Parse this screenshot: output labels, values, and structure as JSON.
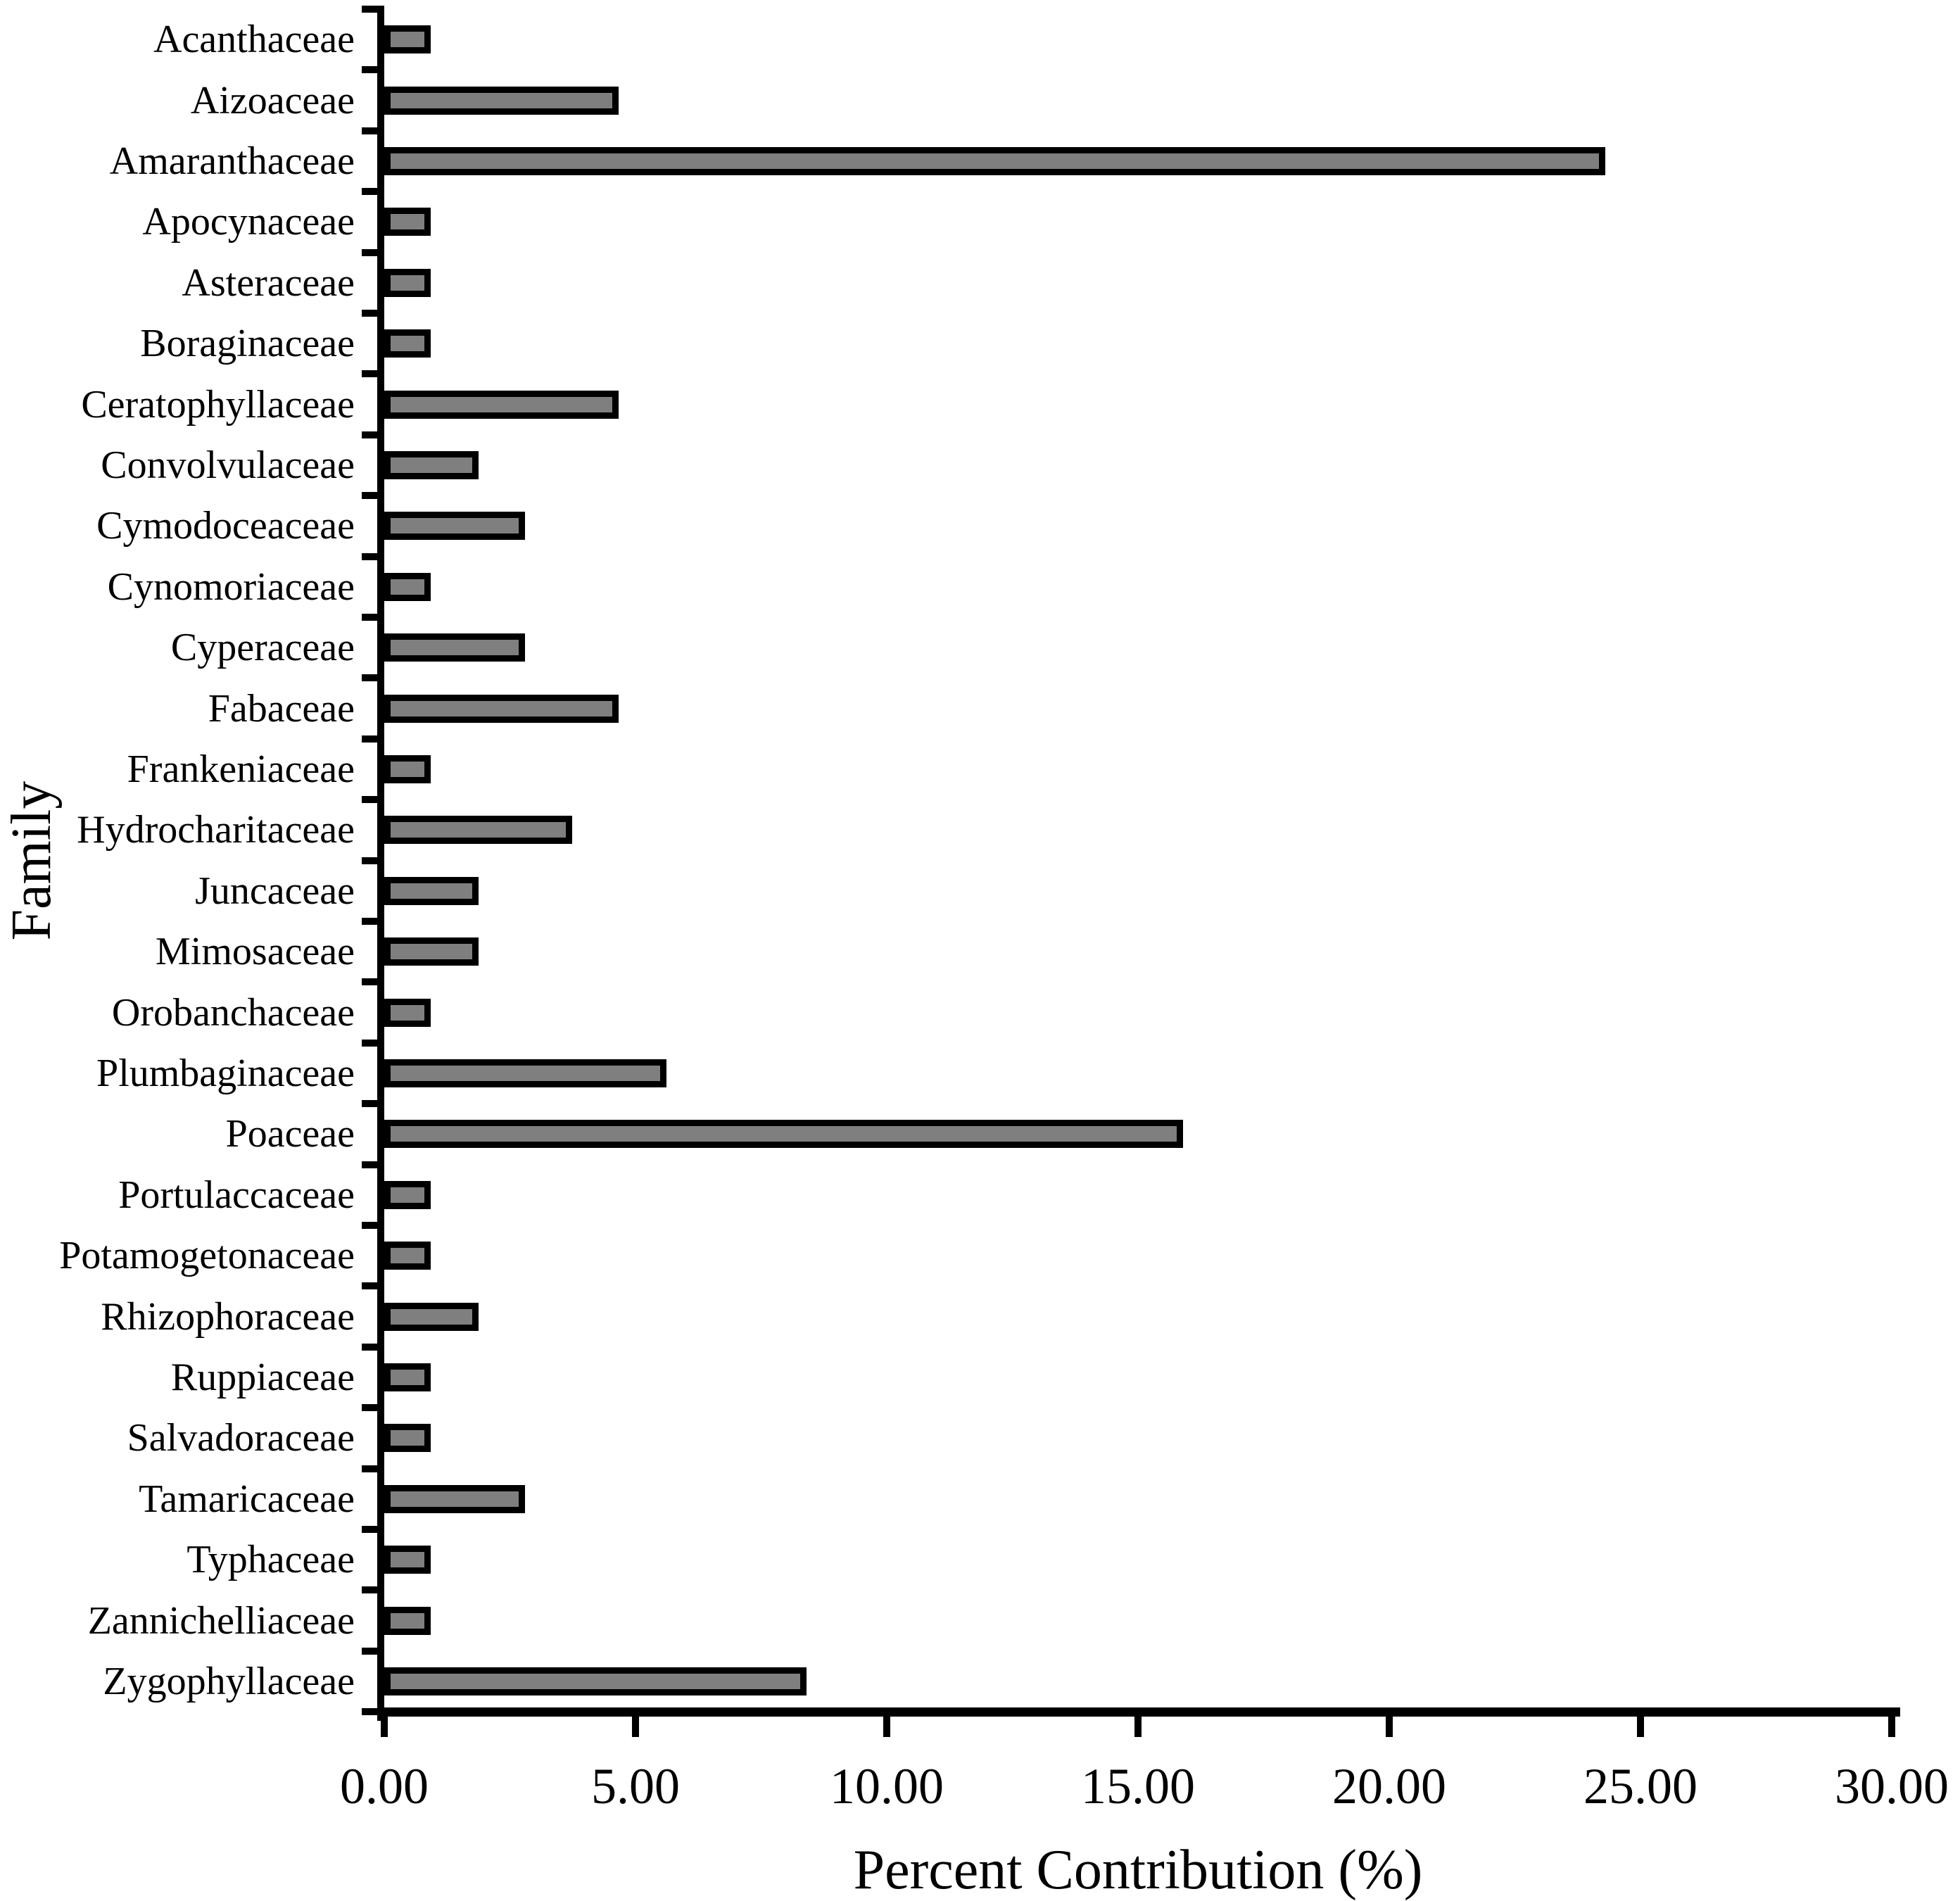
{
  "figure": {
    "background_color": "#ffffff",
    "bar_fill_color": "#7f7f7f",
    "bar_outline_color": "#000000",
    "axis_color": "#000000"
  },
  "chart_data": {
    "type": "bar",
    "orientation": "horizontal",
    "title": "",
    "xlabel": "Percent Contribution (%)",
    "ylabel": "Family",
    "xlim": [
      0,
      30
    ],
    "xticks": [
      0,
      5,
      10,
      15,
      20,
      25,
      30
    ],
    "xtick_labels": [
      "0.00",
      "5.00",
      "10.00",
      "15.00",
      "20.00",
      "25.00",
      "30.00"
    ],
    "grid": false,
    "legend": "none",
    "categories": [
      "Acanthaceae",
      "Aizoaceae",
      "Amaranthaceae",
      "Apocynaceae",
      "Asteraceae",
      "Boraginaceae",
      "Ceratophyllaceae",
      "Convolvulaceae",
      "Cymodoceaceae",
      "Cynomoriaceae",
      "Cyperaceae",
      "Fabaceae",
      "Frankeniaceae",
      "Hydrocharitaceae",
      "Juncaceae",
      "Mimosaceae",
      "Orobanchaceae",
      "Plumbaginaceae",
      "Poaceae",
      "Portulaccaceae",
      "Potamogetonaceae",
      "Rhizophoraceae",
      "Ruppiaceae",
      "Salvadoraceae",
      "Tamaricaceae",
      "Typhaceae",
      "Zannichelliaceae",
      "Zygophyllaceae"
    ],
    "values": [
      0.93,
      4.67,
      24.3,
      0.93,
      0.93,
      0.93,
      4.67,
      1.87,
      2.8,
      0.93,
      2.8,
      4.67,
      0.93,
      3.74,
      1.87,
      1.87,
      0.93,
      5.61,
      15.89,
      0.93,
      0.93,
      1.87,
      0.93,
      0.93,
      2.8,
      0.93,
      0.93,
      8.41
    ]
  }
}
